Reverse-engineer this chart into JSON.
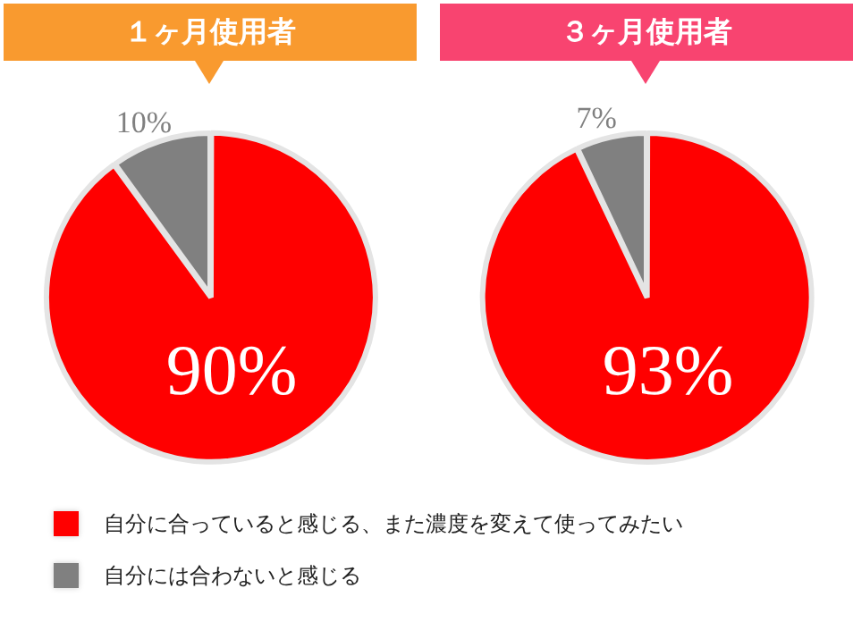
{
  "chart_data": [
    {
      "type": "pie",
      "title": "１ヶ月使用者",
      "categories": [
        "自分に合っていると感じる、また濃度を変えて使ってみたい",
        "自分には合わないと感じる"
      ],
      "values": [
        90,
        10
      ],
      "colors": [
        "#ff0000",
        "#808080"
      ],
      "value_labels": [
        "90%",
        "10%"
      ],
      "legend": "bottom"
    },
    {
      "type": "pie",
      "title": "３ヶ月使用者",
      "categories": [
        null,
        null
      ],
      "values": [
        93,
        7
      ],
      "colors": [
        "#ff0000",
        "#808080"
      ],
      "value_labels": [
        "93%",
        "7%"
      ]
    }
  ]
}
